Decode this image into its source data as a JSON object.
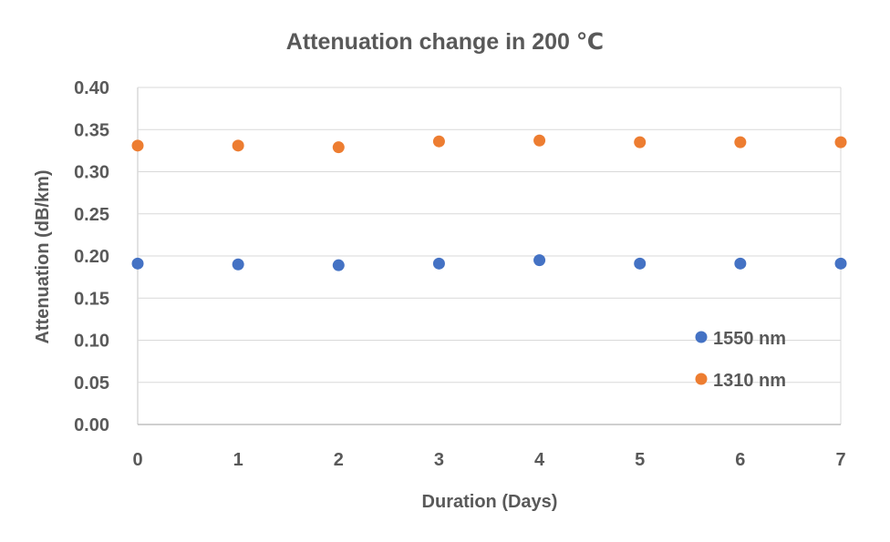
{
  "chart_data": {
    "type": "scatter",
    "title": "Attenuation change in 200 ℃",
    "xlabel": "Duration (Days)",
    "ylabel": "Attenuation (dB/km)",
    "xlim": [
      0,
      7
    ],
    "ylim": [
      0,
      0.4
    ],
    "x_ticks": [
      "0",
      "1",
      "2",
      "3",
      "4",
      "5",
      "6",
      "7"
    ],
    "y_ticks": [
      "0.00",
      "0.05",
      "0.10",
      "0.15",
      "0.20",
      "0.25",
      "0.30",
      "0.35",
      "0.40"
    ],
    "grid": true,
    "legend_position": "bottom-right",
    "series": [
      {
        "name": "1550 nm",
        "color": "#4472C4",
        "points": [
          {
            "x": 0,
            "y": 0.191
          },
          {
            "x": 1,
            "y": 0.19
          },
          {
            "x": 2,
            "y": 0.189
          },
          {
            "x": 3,
            "y": 0.191
          },
          {
            "x": 4,
            "y": 0.195
          },
          {
            "x": 5,
            "y": 0.191
          },
          {
            "x": 6,
            "y": 0.191
          },
          {
            "x": 7,
            "y": 0.191
          }
        ]
      },
      {
        "name": "1310 nm",
        "color": "#ED7D31",
        "points": [
          {
            "x": 0,
            "y": 0.331
          },
          {
            "x": 1,
            "y": 0.331
          },
          {
            "x": 2,
            "y": 0.329
          },
          {
            "x": 3,
            "y": 0.336
          },
          {
            "x": 4,
            "y": 0.337
          },
          {
            "x": 5,
            "y": 0.335
          },
          {
            "x": 6,
            "y": 0.335
          },
          {
            "x": 7,
            "y": 0.335
          }
        ]
      }
    ]
  }
}
